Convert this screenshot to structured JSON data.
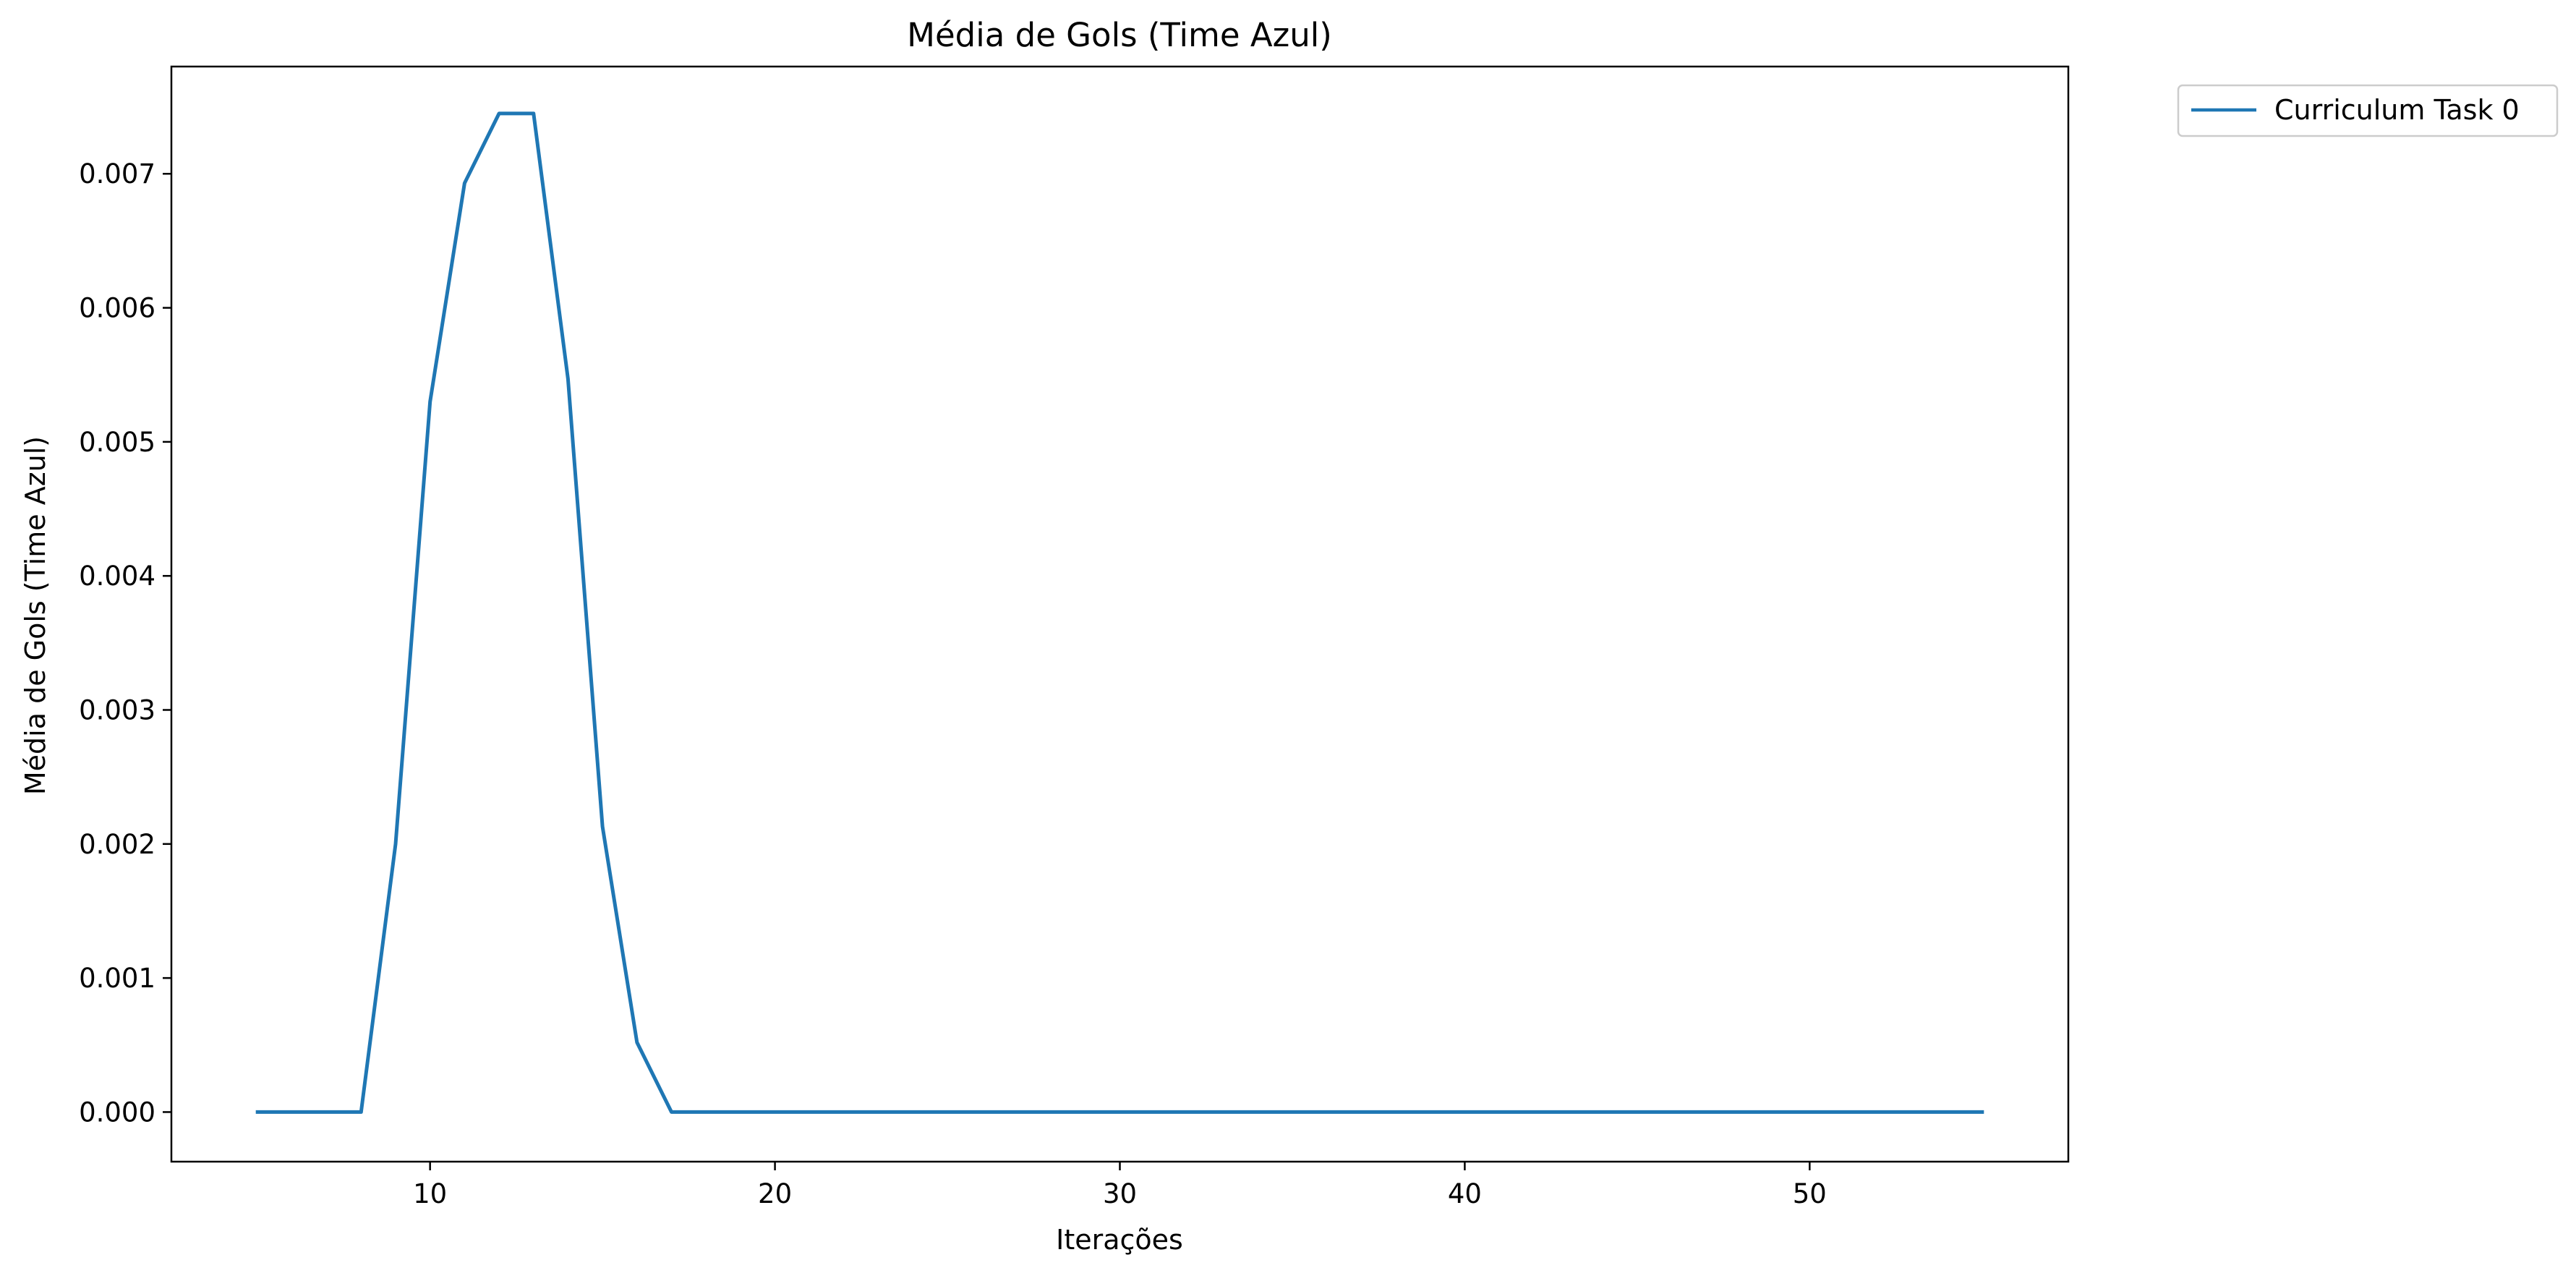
{
  "chart_data": {
    "type": "line",
    "title": "Média de Gols (Time Azul)",
    "xlabel": "Iterações",
    "ylabel": "Média de Gols (Time Azul)",
    "xlim": [
      2.5,
      57.5
    ],
    "ylim": [
      -0.00037,
      0.0078
    ],
    "xticks": [
      10,
      20,
      30,
      40,
      50
    ],
    "yticks": [
      0.0,
      0.001,
      0.002,
      0.003,
      0.004,
      0.005,
      0.006,
      0.007
    ],
    "ytick_labels": [
      "0.000",
      "0.001",
      "0.002",
      "0.003",
      "0.004",
      "0.005",
      "0.006",
      "0.007"
    ],
    "grid": false,
    "legend_position": "outside top-right",
    "series": [
      {
        "name": "Curriculum Task 0",
        "color": "#1f77b4",
        "x": [
          5,
          6,
          7,
          8,
          9,
          10,
          11,
          12,
          13,
          14,
          15,
          16,
          17,
          18,
          19,
          20,
          21,
          22,
          23,
          24,
          25,
          26,
          27,
          28,
          29,
          30,
          31,
          32,
          33,
          34,
          35,
          36,
          37,
          38,
          39,
          40,
          41,
          42,
          43,
          44,
          45,
          46,
          47,
          48,
          49,
          50,
          51,
          52,
          53,
          54,
          55
        ],
        "y": [
          0,
          0,
          0,
          0,
          0.002,
          0.0053,
          0.00693,
          0.00745,
          0.00745,
          0.00547,
          0.00213,
          0.00052,
          0,
          0,
          0,
          0,
          0,
          0,
          0,
          0,
          0,
          0,
          0,
          0,
          0,
          0,
          0,
          0,
          0,
          0,
          0,
          0,
          0,
          0,
          0,
          0,
          0,
          0,
          0,
          0,
          0,
          0,
          0,
          0,
          0,
          0,
          0,
          0,
          0,
          0,
          0
        ]
      }
    ]
  }
}
